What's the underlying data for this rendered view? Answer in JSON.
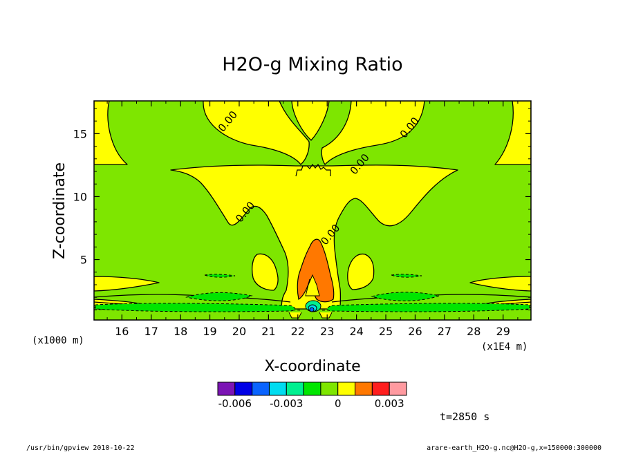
{
  "chart_data": {
    "type": "heatmap",
    "title": "H2O-g Mixing Ratio",
    "xlabel": "X-coordinate",
    "ylabel": "Z-coordinate",
    "x_unit": "(x1E4 m)",
    "y_unit": "(x1000 m)",
    "x_ticks": [
      16,
      17,
      18,
      19,
      20,
      21,
      22,
      23,
      24,
      25,
      26,
      27,
      28,
      29
    ],
    "y_ticks": [
      5,
      10,
      15
    ],
    "xlim": [
      15.05,
      29.95
    ],
    "ylim": [
      0.2,
      17.6
    ],
    "contour_labels": [
      {
        "text": "0.00",
        "x": 19.7,
        "y": 15.8
      },
      {
        "text": "0.00",
        "x": 24.2,
        "y": 12.4
      },
      {
        "text": "0.00",
        "x": 25.9,
        "y": 15.3
      },
      {
        "text": "0.00",
        "x": 20.3,
        "y": 8.6
      },
      {
        "text": "0.00",
        "x": 23.2,
        "y": 6.8
      }
    ],
    "legend": {
      "levels": [
        "-0.006",
        "-0.003",
        "0",
        "0.003"
      ],
      "colors": [
        "#7b14b4",
        "#0000e6",
        "#0a64ff",
        "#00dcf0",
        "#00f090",
        "#00e600",
        "#7ee600",
        "#ffff00",
        "#ff7800",
        "#ff1e1e",
        "#ff9aa0"
      ]
    },
    "time_label": "t=2850 s"
  },
  "footer": {
    "left": "/usr/bin/gpview  2010-10-22",
    "right": "arare-earth_H2O-g.nc@H2O-g,x=150000:300000"
  }
}
